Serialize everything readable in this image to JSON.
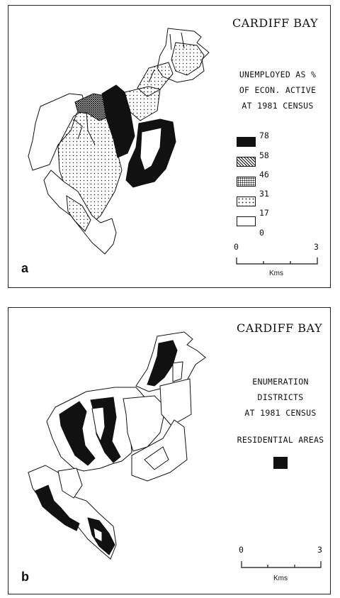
{
  "panels": {
    "a": {
      "title": "CARDIFF BAY",
      "caption": [
        "UNEMPLOYED AS %",
        "OF ECON. ACTIVE",
        "AT 1981 CENSUS"
      ],
      "legend": {
        "breaks": [
          "78",
          "58",
          "46",
          "31",
          "17",
          "0"
        ],
        "classes": [
          {
            "range": "58-78",
            "fill": "solid-black"
          },
          {
            "range": "46-58",
            "fill": "dense-crosshatch"
          },
          {
            "range": "31-46",
            "fill": "medium-stipple"
          },
          {
            "range": "17-31",
            "fill": "light-dots"
          },
          {
            "range": "0-17",
            "fill": "white"
          }
        ]
      },
      "scale": {
        "start": "0",
        "end": "3",
        "unit": "Kms"
      },
      "label": "a"
    },
    "b": {
      "title": "CARDIFF BAY",
      "caption": [
        "ENUMERATION DISTRICTS",
        "AT 1981 CENSUS"
      ],
      "legend_label": "RESIDENTIAL AREAS",
      "scale": {
        "start": "0",
        "end": "3",
        "unit": "Kms"
      },
      "label": "b"
    }
  },
  "colors": {
    "ink": "#111111",
    "paper": "#ffffff"
  }
}
